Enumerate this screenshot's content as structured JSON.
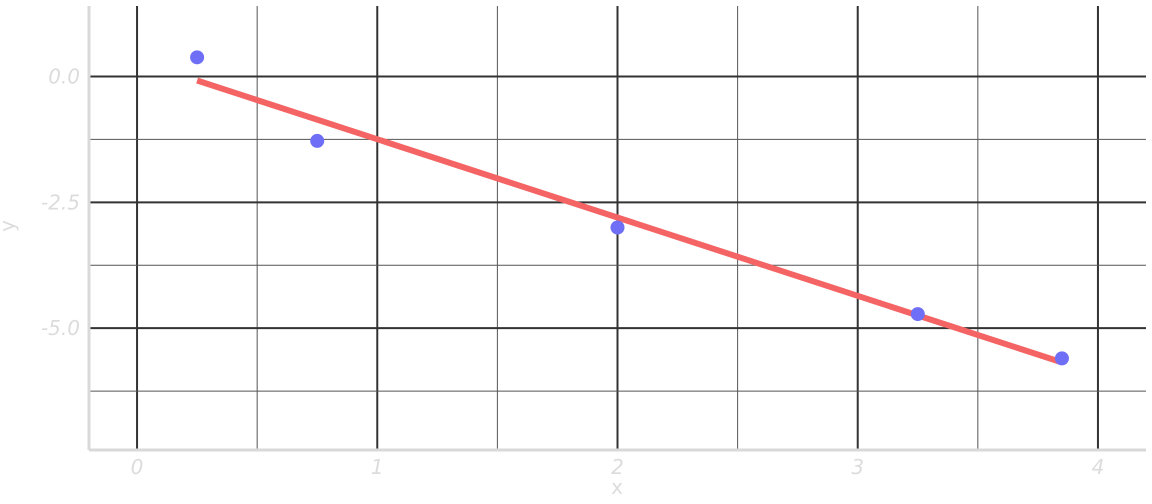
{
  "chart_data": {
    "type": "scatter",
    "title": "",
    "xlabel": "x",
    "ylabel": "y",
    "xlim": [
      -0.2,
      4.2
    ],
    "ylim": [
      -7.4,
      1.4
    ],
    "x_ticks": [
      0,
      1,
      2,
      3,
      4
    ],
    "x_tick_labels": [
      "0",
      "1",
      "2",
      "3",
      "4"
    ],
    "y_ticks": [
      0.0,
      -2.5,
      -5.0
    ],
    "y_tick_labels": [
      "0.0",
      "-2.5",
      "-5.0"
    ],
    "grid": true,
    "legend": "none",
    "colors": {
      "points": "#6e6ef7",
      "fit_line": "#f46464",
      "grid_major": "#333333",
      "grid_minor": "#555555",
      "axis": "#d9d9d9",
      "label": "#dcdcdc"
    },
    "series": [
      {
        "kind": "points",
        "x": [
          0.25,
          0.75,
          2.0,
          3.25,
          3.85
        ],
        "y": [
          0.38,
          -1.28,
          -3.0,
          -4.72,
          -5.6
        ]
      },
      {
        "kind": "line",
        "x": [
          0.25,
          3.85
        ],
        "y": [
          -0.08,
          -5.68
        ]
      }
    ]
  }
}
